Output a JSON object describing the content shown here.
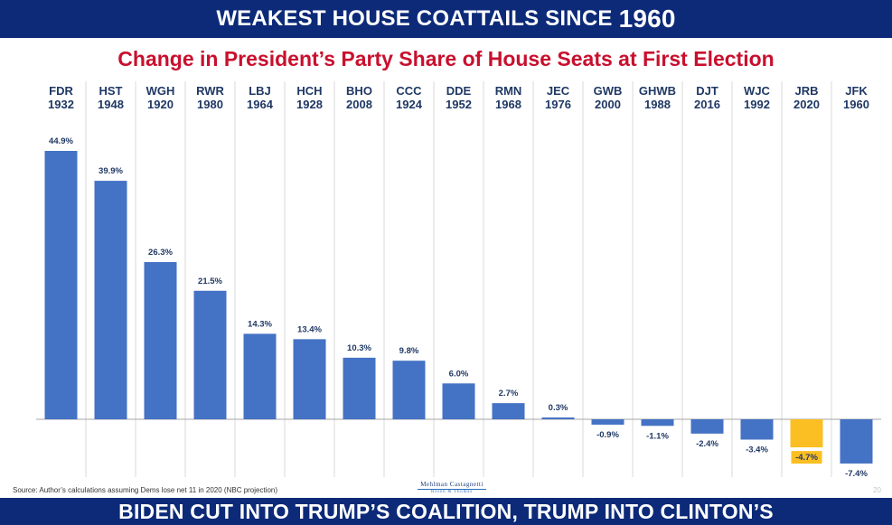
{
  "header": {
    "title_main": "WEAKEST HOUSE COATTAILS SINCE",
    "title_year": "1960"
  },
  "chart_data": {
    "type": "bar",
    "title": "Change in President’s Party Share of House Seats at First Election",
    "categories": [
      {
        "name": "FDR",
        "year": "1932"
      },
      {
        "name": "HST",
        "year": "1948"
      },
      {
        "name": "WGH",
        "year": "1920"
      },
      {
        "name": "RWR",
        "year": "1980"
      },
      {
        "name": "LBJ",
        "year": "1964"
      },
      {
        "name": "HCH",
        "year": "1928"
      },
      {
        "name": "BHO",
        "year": "2008"
      },
      {
        "name": "CCC",
        "year": "1924"
      },
      {
        "name": "DDE",
        "year": "1952"
      },
      {
        "name": "RMN",
        "year": "1968"
      },
      {
        "name": "JEC",
        "year": "1976"
      },
      {
        "name": "GWB",
        "year": "2000"
      },
      {
        "name": "GHWB",
        "year": "1988"
      },
      {
        "name": "DJT",
        "year": "2016"
      },
      {
        "name": "WJC",
        "year": "1992"
      },
      {
        "name": "JRB",
        "year": "2020"
      },
      {
        "name": "JFK",
        "year": "1960"
      }
    ],
    "values": [
      44.9,
      39.9,
      26.3,
      21.5,
      14.3,
      13.4,
      10.3,
      9.8,
      6.0,
      2.7,
      0.3,
      -0.9,
      -1.1,
      -2.4,
      -3.4,
      -4.7,
      -7.4
    ],
    "labels": [
      "44.9%",
      "39.9%",
      "26.3%",
      "21.5%",
      "14.3%",
      "13.4%",
      "10.3%",
      "9.8%",
      "6.0%",
      "2.7%",
      "0.3%",
      "-0.9%",
      "-1.1%",
      "-2.4%",
      "-3.4%",
      "-4.7%",
      "-7.4%"
    ],
    "highlight_index": 15,
    "colors": {
      "bar": "#4472c4",
      "highlight": "#fbbf24",
      "highlight_label_bg": "#fbbf24",
      "label": "#1f3864",
      "category_text": "#1f3864",
      "gridline": "#d9d9d9",
      "zero_line": "#a6a6a6"
    },
    "ylim": [
      -9,
      46
    ],
    "grid": "vertical separators between categories",
    "legend": "none"
  },
  "footer": {
    "source": "Source: Author’s calculations assuming Dems lose net 11 in 2020 (NBC projection)",
    "firm_top": "Mehlman Castagnetti",
    "firm_bottom": "Rosen & Thomas",
    "page_number": "20",
    "tagline": "BIDEN CUT INTO TRUMP’S COALITION, TRUMP INTO CLINTON’S"
  }
}
